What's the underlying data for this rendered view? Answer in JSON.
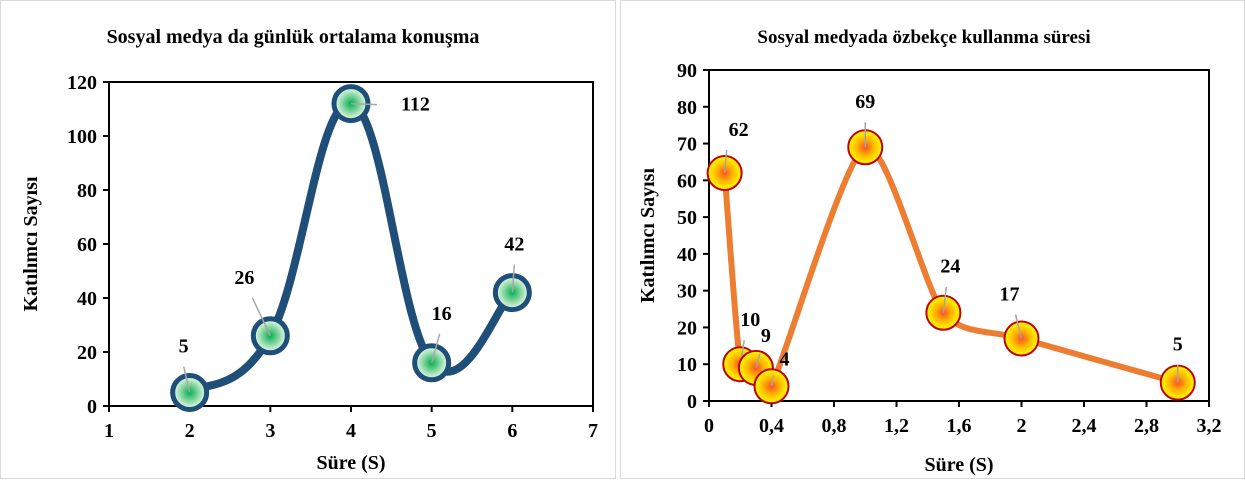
{
  "chart_data": [
    {
      "type": "line",
      "title": "Sosyal medya da günlük ortalama konuşma",
      "xlabel": "Süre (S)",
      "ylabel": "Katılımcı Sayısı",
      "xlim": [
        1,
        7
      ],
      "ylim": [
        0,
        120
      ],
      "x_ticks": [
        "1",
        "2",
        "3",
        "4",
        "5",
        "6",
        "7"
      ],
      "y_ticks": [
        "0",
        "20",
        "40",
        "60",
        "80",
        "100",
        "120"
      ],
      "x": [
        2,
        3,
        4,
        5,
        6
      ],
      "values": [
        5,
        26,
        112,
        16,
        42
      ],
      "data_labels": [
        "5",
        "26",
        "112",
        "16",
        "42"
      ],
      "smooth": true,
      "grid": false,
      "line_color": "#1f4e79",
      "marker_fill": "#00b050",
      "marker_edge": "#1f4e79"
    },
    {
      "type": "line",
      "title": "Sosyal medyada özbekçe kullanma süresi",
      "xlabel": "Süre (S)",
      "ylabel": "Katılımcı Sayısı",
      "xlim": [
        0,
        3.2
      ],
      "ylim": [
        0,
        90
      ],
      "x_ticks": [
        "0",
        "0,4",
        "0,8",
        "1,2",
        "1,6",
        "2",
        "2,4",
        "2,8",
        "3,2"
      ],
      "y_ticks": [
        "0",
        "10",
        "20",
        "30",
        "40",
        "50",
        "60",
        "70",
        "80",
        "90"
      ],
      "x": [
        0.1,
        0.2,
        0.3,
        0.4,
        1,
        1.5,
        2,
        3
      ],
      "values": [
        62,
        10,
        9,
        4,
        69,
        24,
        17,
        5
      ],
      "data_labels": [
        "62",
        "10",
        "9",
        "4",
        "69",
        "24",
        "17",
        "5"
      ],
      "smooth": true,
      "grid": false,
      "line_color": "#ed7d31",
      "marker_fill": "#ffff00",
      "marker_edge": "#c00000"
    }
  ]
}
